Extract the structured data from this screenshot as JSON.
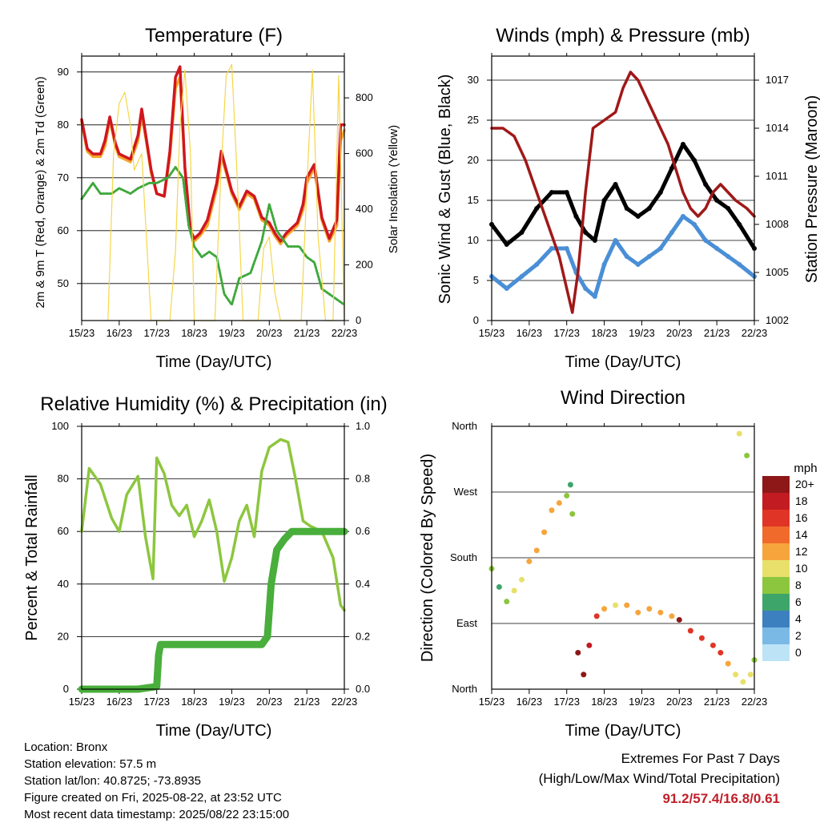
{
  "charts": {
    "temperature": {
      "title": "Temperature (F)",
      "ylabel": "2m & 9m T (Red, Orange) & 2m Td (Green)",
      "y2label": "Solar Insolation (Yellow)",
      "xlabel": "Time (Day/UTC)"
    },
    "winds": {
      "title": "Winds (mph) & Pressure (mb)",
      "ylabel": "Sonic Wind & Gust (Blue, Black)",
      "y2label": "Station Pressure (Maroon)",
      "xlabel": "Time (Day/UTC)"
    },
    "humidity": {
      "title": "Relative Humidity (%) & Precipitation (in)",
      "ylabel": "Percent & Total Rainfall",
      "xlabel": "Time (Day/UTC)"
    },
    "direction": {
      "title": "Wind Direction",
      "ylabel": "Direction (Colored By Speed)",
      "xlabel": "Time (Day/UTC)",
      "legend_title": "mph"
    }
  },
  "chart_data": [
    {
      "id": "temperature",
      "type": "line",
      "x_ticks": [
        "15/23",
        "16/23",
        "17/23",
        "18/23",
        "19/23",
        "20/23",
        "21/23",
        "22/23"
      ],
      "xlim": [
        0,
        7
      ],
      "ylim": [
        43,
        93
      ],
      "y_ticks": [
        50,
        60,
        70,
        80,
        90
      ],
      "y2lim": [
        0,
        950
      ],
      "y2_ticks": [
        0,
        200,
        400,
        600,
        800
      ],
      "series": [
        {
          "color": "#f4a52a",
          "x": [
            0,
            0.15,
            0.3,
            0.5,
            0.62,
            0.75,
            0.9,
            1.0,
            1.15,
            1.3,
            1.5,
            1.6,
            1.72,
            1.85,
            2.0,
            2.2,
            2.35,
            2.5,
            2.62,
            2.75,
            2.9,
            3.0,
            3.15,
            3.35,
            3.6,
            3.72,
            3.85,
            4.0,
            4.2,
            4.4,
            4.6,
            4.8,
            5.0,
            5.15,
            5.3,
            5.45,
            5.6,
            5.75,
            5.9,
            6.0,
            6.2,
            6.4,
            6.6,
            6.8,
            6.9,
            7.0
          ],
          "y": [
            80.5,
            75,
            74,
            74,
            76,
            81,
            76,
            74,
            73.5,
            73,
            77,
            82,
            77,
            71,
            67,
            66.5,
            74,
            87,
            89,
            72,
            60,
            58,
            59,
            61,
            68,
            74,
            71,
            67,
            64,
            67,
            66,
            62,
            61,
            59,
            57.5,
            59,
            60,
            61,
            64,
            69,
            72,
            62,
            58,
            61,
            77,
            79
          ]
        },
        {
          "color": "#d0161f",
          "x": [
            0,
            0.15,
            0.3,
            0.5,
            0.62,
            0.75,
            0.9,
            1.0,
            1.15,
            1.3,
            1.5,
            1.6,
            1.72,
            1.85,
            2.0,
            2.2,
            2.35,
            2.5,
            2.62,
            2.75,
            2.9,
            3.0,
            3.15,
            3.35,
            3.6,
            3.72,
            3.85,
            4.0,
            4.2,
            4.4,
            4.6,
            4.8,
            5.0,
            5.15,
            5.3,
            5.45,
            5.6,
            5.75,
            5.9,
            6.0,
            6.2,
            6.4,
            6.6,
            6.8,
            6.9,
            7.0
          ],
          "y": [
            81,
            75.5,
            74.5,
            74.5,
            77,
            81.5,
            76.5,
            74.5,
            74,
            73.5,
            78,
            83,
            77.5,
            71.5,
            67,
            66.5,
            75,
            89,
            91,
            72,
            60,
            58.5,
            59.5,
            62,
            69,
            75,
            71.5,
            67.5,
            64.5,
            67.5,
            66.5,
            62.5,
            61.5,
            59.5,
            58,
            59.5,
            60.5,
            61.5,
            65,
            70,
            72.5,
            62.5,
            58.5,
            62,
            80,
            80
          ]
        },
        {
          "color": "#3fa83c",
          "dashed": true,
          "x": [
            0,
            0.3,
            0.5,
            0.8,
            1.0,
            1.3,
            1.5,
            1.8,
            2.0,
            2.3,
            2.5,
            2.7,
            2.85,
            3.0,
            3.2,
            3.4,
            3.6,
            3.8,
            4.0,
            4.2,
            4.5,
            4.8,
            5.0,
            5.2,
            5.5,
            5.8,
            6.0,
            6.2,
            6.4,
            6.6,
            6.8,
            7.0
          ],
          "y": [
            66,
            69,
            67,
            67,
            68,
            67,
            68,
            69,
            69,
            70,
            72,
            70,
            61,
            57,
            55,
            56,
            55,
            48,
            46,
            51,
            52,
            58,
            65,
            60,
            57,
            57,
            55,
            54,
            49,
            48,
            47,
            46
          ]
        },
        {
          "color": "#f6d64a",
          "axis": "y2",
          "x": [
            0.7,
            0.85,
            1.0,
            1.15,
            1.3,
            1.4,
            1.6,
            1.85,
            1.95,
            2.05,
            2.2,
            2.35,
            2.5,
            2.62,
            2.75,
            2.9,
            3.0,
            3.15,
            3.35,
            3.55,
            3.7,
            3.85,
            4.0,
            4.15,
            4.3,
            4.5,
            4.7,
            4.85,
            5.0,
            5.15,
            5.3,
            5.45,
            5.6,
            5.75,
            5.85,
            6.0,
            6.15,
            6.3,
            6.5,
            6.7,
            6.85,
            7.0
          ],
          "y": [
            0,
            600,
            780,
            820,
            700,
            540,
            600,
            0,
            0,
            0,
            0,
            0,
            250,
            700,
            900,
            600,
            0,
            0,
            0,
            0,
            500,
            880,
            920,
            500,
            0,
            0,
            0,
            260,
            300,
            100,
            0,
            0,
            0,
            0,
            0,
            480,
            900,
            300,
            0,
            0,
            880,
            0
          ]
        }
      ]
    },
    {
      "id": "winds",
      "type": "scatter",
      "x_ticks": [
        "15/23",
        "16/23",
        "17/23",
        "18/23",
        "19/23",
        "20/23",
        "21/23",
        "22/23"
      ],
      "xlim": [
        0,
        7
      ],
      "ylim": [
        0,
        33
      ],
      "y_ticks": [
        0,
        5,
        10,
        15,
        20,
        25,
        30
      ],
      "y2lim": [
        1002,
        1018.5
      ],
      "y2_ticks": [
        1002,
        1005,
        1008,
        1011,
        1014,
        1017
      ],
      "series": [
        {
          "color": "#4a8fd6",
          "x": [
            0,
            0.4,
            0.8,
            1.2,
            1.6,
            2.0,
            2.25,
            2.5,
            2.75,
            3.0,
            3.3,
            3.6,
            3.9,
            4.2,
            4.5,
            4.8,
            5.1,
            5.4,
            5.7,
            6.0,
            6.3,
            6.6,
            7.0
          ],
          "y": [
            5.5,
            4.0,
            5.5,
            7.0,
            9.0,
            9.0,
            6.0,
            4.0,
            3.0,
            7.0,
            10.0,
            8.0,
            7.0,
            8.0,
            9.0,
            11.0,
            13.0,
            12.0,
            10.0,
            9.0,
            8.0,
            7.0,
            5.5
          ]
        },
        {
          "color": "#000000",
          "x": [
            0,
            0.4,
            0.8,
            1.2,
            1.6,
            2.0,
            2.25,
            2.5,
            2.75,
            3.0,
            3.3,
            3.6,
            3.9,
            4.2,
            4.5,
            4.8,
            5.1,
            5.4,
            5.7,
            6.0,
            6.3,
            6.6,
            7.0
          ],
          "y": [
            12.0,
            9.5,
            11.0,
            14.0,
            16.0,
            16.0,
            13.0,
            11.0,
            10.0,
            15.0,
            17.0,
            14.0,
            13.0,
            14.0,
            16.0,
            19.0,
            22.0,
            20.0,
            17.0,
            15.0,
            14.0,
            12.0,
            9.0
          ]
        },
        {
          "color": "#a01818",
          "axis": "y2",
          "x": [
            0,
            0.3,
            0.6,
            0.9,
            1.2,
            1.5,
            1.8,
            2.0,
            2.15,
            2.3,
            2.5,
            2.7,
            3.0,
            3.3,
            3.5,
            3.7,
            3.9,
            4.1,
            4.3,
            4.5,
            4.7,
            4.9,
            5.1,
            5.3,
            5.5,
            5.7,
            5.9,
            6.1,
            6.3,
            6.5,
            6.8,
            7.0
          ],
          "y": [
            1014,
            1014,
            1013.5,
            1012,
            1010,
            1008,
            1006,
            1004,
            1002.5,
            1005,
            1010,
            1014,
            1014.5,
            1015,
            1016.5,
            1017.5,
            1017,
            1016,
            1015,
            1014,
            1013,
            1011.5,
            1010,
            1009,
            1008.5,
            1009,
            1010,
            1010.5,
            1010,
            1009.5,
            1009,
            1008.5
          ]
        }
      ]
    },
    {
      "id": "humidity",
      "type": "line",
      "x_ticks": [
        "15/23",
        "16/23",
        "17/23",
        "18/23",
        "19/23",
        "20/23",
        "21/23",
        "22/23"
      ],
      "xlim": [
        0,
        7
      ],
      "ylim": [
        0,
        100
      ],
      "y_ticks": [
        0,
        20,
        40,
        60,
        80,
        100
      ],
      "y2lim": [
        0,
        1.0
      ],
      "y2_ticks": [
        "0.0",
        "0.2",
        "0.4",
        "0.6",
        "0.8",
        "1.0"
      ],
      "series": [
        {
          "color": "#8dc63f",
          "x": [
            0,
            0.2,
            0.5,
            0.8,
            1.0,
            1.2,
            1.5,
            1.7,
            1.9,
            2.0,
            2.2,
            2.4,
            2.6,
            2.8,
            3.0,
            3.2,
            3.4,
            3.6,
            3.8,
            4.0,
            4.2,
            4.4,
            4.6,
            4.8,
            5.0,
            5.3,
            5.5,
            5.7,
            5.9,
            6.1,
            6.4,
            6.7,
            6.9,
            7.0
          ],
          "y": [
            60,
            84,
            78,
            65,
            60,
            74,
            81,
            58,
            42,
            88,
            82,
            70,
            66,
            70,
            58,
            64,
            72,
            60,
            41,
            50,
            64,
            70,
            58,
            83,
            92,
            95,
            94,
            80,
            64,
            62,
            60,
            50,
            32,
            30
          ]
        },
        {
          "color": "#49ae3b",
          "axis": "y2",
          "thick": true,
          "x": [
            0,
            0.5,
            1.0,
            1.5,
            2.0,
            2.05,
            2.1,
            2.5,
            3.0,
            3.5,
            4.0,
            4.5,
            4.8,
            4.95,
            5.05,
            5.2,
            5.4,
            5.6,
            6.0,
            6.5,
            7.0
          ],
          "y": [
            0,
            0,
            0,
            0,
            0.01,
            0.13,
            0.17,
            0.17,
            0.17,
            0.17,
            0.17,
            0.17,
            0.17,
            0.2,
            0.4,
            0.53,
            0.57,
            0.6,
            0.6,
            0.6,
            0.6
          ]
        }
      ]
    },
    {
      "id": "direction",
      "type": "scatter",
      "x_ticks": [
        "15/23",
        "16/23",
        "17/23",
        "18/23",
        "19/23",
        "20/23",
        "21/23",
        "22/23"
      ],
      "y_ticks": [
        "North",
        "East",
        "South",
        "West",
        "North"
      ],
      "xlim": [
        0,
        7
      ],
      "ylim": [
        0,
        360
      ],
      "legend": {
        "labels": [
          "20+",
          "18",
          "16",
          "14",
          "12",
          "10",
          "8",
          "6",
          "4",
          "2",
          "0"
        ],
        "colors": [
          "#8e1717",
          "#c21b22",
          "#e03526",
          "#f06a2b",
          "#f6a53c",
          "#e8e06a",
          "#8cc63f",
          "#3ea56a",
          "#3d80c0",
          "#7ab9e6",
          "#bde3f6"
        ]
      },
      "series": [
        {
          "name": "",
          "x": [
            0,
            0.2,
            0.4,
            0.6,
            0.8,
            1.0,
            1.2,
            1.4,
            1.6,
            1.8,
            2.0,
            2.1,
            2.15,
            2.3,
            2.45,
            2.6,
            2.8,
            3.0,
            3.3,
            3.6,
            3.9,
            4.2,
            4.5,
            4.8,
            5.0,
            5.3,
            5.6,
            5.9,
            6.1,
            6.3,
            6.5,
            6.7,
            6.9,
            7.0,
            6.6,
            6.8
          ],
          "y": [
            165,
            140,
            120,
            135,
            150,
            175,
            190,
            215,
            245,
            255,
            265,
            280,
            240,
            50,
            20,
            60,
            100,
            110,
            115,
            115,
            105,
            110,
            105,
            100,
            95,
            80,
            70,
            60,
            50,
            35,
            20,
            10,
            20,
            40,
            350,
            320
          ],
          "c": [
            4,
            3,
            4,
            5,
            5,
            6,
            6,
            6,
            6,
            6,
            4,
            3,
            4,
            10,
            10,
            9,
            8,
            6,
            5,
            6,
            6,
            6,
            6,
            6,
            10,
            8,
            8,
            8,
            8,
            6,
            5,
            5,
            5,
            4,
            5,
            4
          ]
        }
      ]
    }
  ],
  "footer": {
    "location": "Location: Bronx",
    "elevation": "Station elevation: 57.5 m",
    "latlon": "Station lat/lon: 40.8725; -73.8935",
    "created": "Figure created on Fri, 2025-08-22, at 23:52 UTC",
    "timestamp": "Most recent data timestamp: 2025/08/22 23:15:00"
  },
  "extremes": {
    "title": "Extremes For Past 7 Days",
    "subtitle": "(High/Low/Max Wind/Total Precipitation)",
    "value": "91.2/57.4/16.8/0.61"
  }
}
